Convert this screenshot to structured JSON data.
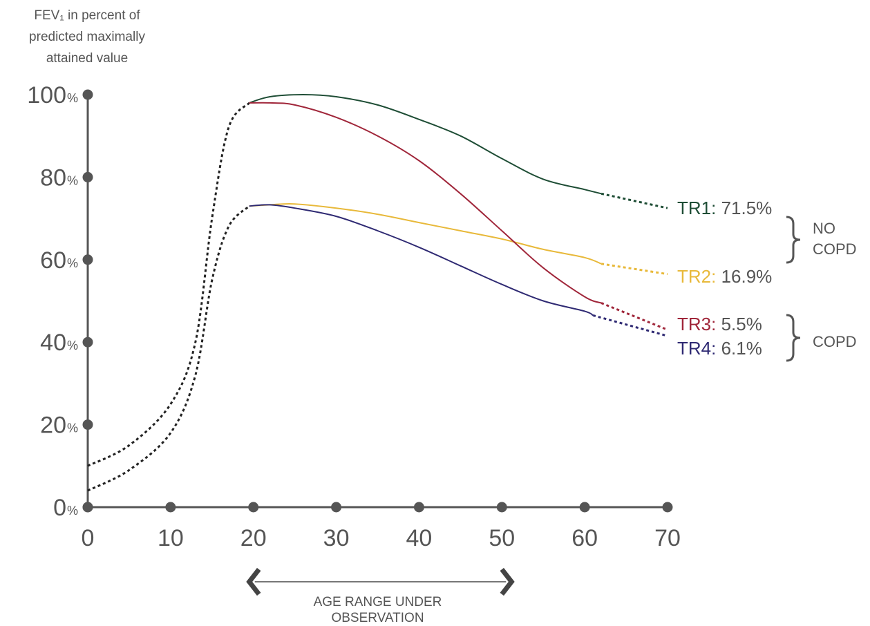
{
  "chart_data": {
    "type": "line",
    "ylabel": [
      "FEV₁ in percent of",
      "predicted maximally",
      "attained value"
    ],
    "y_ticks": [
      {
        "value": 100,
        "num": "100",
        "unit": "%"
      },
      {
        "value": 80,
        "num": "80",
        "unit": "%"
      },
      {
        "value": 60,
        "num": "60",
        "unit": "%"
      },
      {
        "value": 40,
        "num": "40",
        "unit": "%"
      },
      {
        "value": 20,
        "num": "20",
        "unit": "%"
      },
      {
        "value": 0,
        "num": "0",
        "unit": "%"
      }
    ],
    "x_ticks": [
      0,
      10,
      20,
      30,
      40,
      50,
      60,
      70
    ],
    "xlim": [
      0,
      70
    ],
    "ylim": [
      0,
      100
    ],
    "grid": false,
    "childhood_curves": [
      {
        "x": [
          0,
          5,
          10,
          13,
          15,
          17,
          19.5
        ],
        "y": [
          10,
          15,
          25,
          40,
          70,
          92,
          98
        ]
      },
      {
        "x": [
          0,
          5,
          10,
          13,
          15,
          17,
          19.5
        ],
        "y": [
          4,
          9,
          18,
          32,
          55,
          68,
          73
        ]
      }
    ],
    "series": [
      {
        "name": "TR1",
        "value_text": "71.5%",
        "color": "#1e4d35",
        "x": [
          19.5,
          22,
          26,
          30,
          35,
          40,
          45,
          50,
          55,
          60,
          62
        ],
        "y": [
          98,
          99.5,
          100,
          99.5,
          97.5,
          94,
          90,
          84.5,
          79.5,
          77,
          76
        ],
        "extension": {
          "x": [
            62,
            70
          ],
          "y": [
            76,
            72.5
          ]
        }
      },
      {
        "name": "TR2",
        "value_text": "16.9%",
        "color": "#e8b93a",
        "x": [
          19.5,
          22,
          25,
          30,
          35,
          40,
          45,
          50,
          55,
          60,
          62
        ],
        "y": [
          73,
          73.3,
          73.5,
          72.5,
          71,
          69,
          67,
          65,
          62.5,
          60.5,
          59
        ],
        "extension": {
          "x": [
            62,
            70
          ],
          "y": [
            59,
            56.5
          ]
        }
      },
      {
        "name": "TR3",
        "value_text": "5.5%",
        "color": "#a0263a",
        "x": [
          19.5,
          22,
          25,
          30,
          35,
          40,
          45,
          50,
          55,
          60,
          62
        ],
        "y": [
          98,
          98,
          97.5,
          94.5,
          90,
          84,
          76,
          67,
          58,
          51,
          49.5
        ],
        "extension": {
          "x": [
            62,
            70
          ],
          "y": [
            49.5,
            43
          ]
        }
      },
      {
        "name": "TR4",
        "value_text": "6.1%",
        "color": "#2f2a73",
        "x": [
          19.5,
          22,
          25,
          30,
          35,
          40,
          45,
          50,
          55,
          60,
          61
        ],
        "y": [
          73,
          73.3,
          72.5,
          70.5,
          67,
          63,
          58.5,
          54,
          50,
          47.5,
          46.5
        ],
        "extension": {
          "x": [
            61,
            70
          ],
          "y": [
            46.5,
            41.5
          ]
        }
      }
    ],
    "groups": [
      {
        "label_lines": [
          "NO",
          "COPD"
        ],
        "members": [
          "TR1",
          "TR2"
        ]
      },
      {
        "label_lines": [
          "COPD"
        ],
        "members": [
          "TR3",
          "TR4"
        ]
      }
    ],
    "age_range": {
      "from": 20,
      "to": 50,
      "label_lines": [
        "AGE RANGE UNDER",
        "OBSERVATION"
      ]
    },
    "colors": {
      "axis": "#555555",
      "text": "#555555",
      "dotted": "#222222"
    }
  }
}
